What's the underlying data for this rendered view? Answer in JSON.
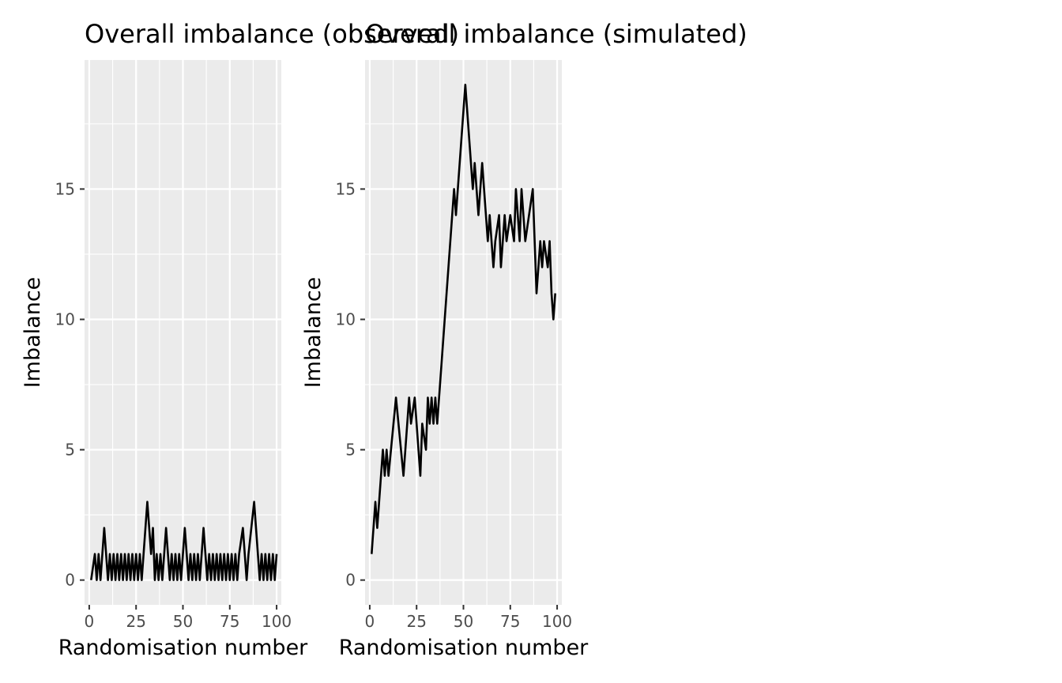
{
  "chart_data": [
    {
      "type": "line",
      "title": "Overall imbalance (observed)",
      "xlabel": "Randomisation number",
      "ylabel": "Imbalance",
      "xlim": [
        -2.5,
        102.5
      ],
      "ylim": [
        -0.95,
        19.95
      ],
      "xticks": [
        0,
        25,
        50,
        75,
        100
      ],
      "yticks": [
        0,
        5,
        10,
        15
      ],
      "grid": true,
      "legend": "none",
      "colors": {
        "panel": "#ebebeb",
        "grid": "#ffffff",
        "line": "#000000",
        "tick": "#4d4d4d"
      },
      "series": [
        {
          "x": [
            1,
            3,
            4,
            5,
            6,
            8,
            10,
            11,
            12,
            13,
            14,
            15,
            16,
            17,
            18,
            19,
            20,
            21,
            22,
            23,
            24,
            25,
            26,
            27,
            28,
            29,
            31,
            33,
            34,
            35,
            36,
            37,
            38,
            39,
            41,
            43,
            44,
            45,
            46,
            47,
            48,
            49,
            51,
            53,
            54,
            55,
            56,
            57,
            58,
            59,
            61,
            63,
            64,
            65,
            66,
            67,
            68,
            69,
            70,
            71,
            72,
            73,
            74,
            75,
            76,
            77,
            78,
            79,
            80,
            82,
            84,
            85,
            88,
            91,
            92,
            93,
            94,
            95,
            96,
            97,
            98,
            99,
            100
          ],
          "y": [
            0,
            1,
            0,
            1,
            0,
            2,
            0,
            1,
            0,
            1,
            0,
            1,
            0,
            1,
            0,
            1,
            0,
            1,
            0,
            1,
            0,
            1,
            0,
            1,
            0,
            1,
            3,
            1,
            2,
            0,
            1,
            0,
            1,
            0,
            2,
            0,
            1,
            0,
            1,
            0,
            1,
            0,
            2,
            0,
            1,
            0,
            1,
            0,
            1,
            0,
            2,
            0,
            1,
            0,
            1,
            0,
            1,
            0,
            1,
            0,
            1,
            0,
            1,
            0,
            1,
            0,
            1,
            0,
            1,
            2,
            0,
            1,
            3,
            0,
            1,
            0,
            1,
            0,
            1,
            0,
            1,
            0,
            1
          ]
        }
      ]
    },
    {
      "type": "line",
      "title": "Overall imbalance (simulated)",
      "xlabel": "Randomisation number",
      "ylabel": "Imbalance",
      "xlim": [
        -2.5,
        102.5
      ],
      "ylim": [
        -0.95,
        19.95
      ],
      "xticks": [
        0,
        25,
        50,
        75,
        100
      ],
      "yticks": [
        0,
        5,
        10,
        15
      ],
      "grid": true,
      "legend": "none",
      "colors": {
        "panel": "#ebebeb",
        "grid": "#ffffff",
        "line": "#000000",
        "tick": "#4d4d4d"
      },
      "series": [
        {
          "x": [
            1,
            3,
            4,
            7,
            8,
            9,
            10,
            14,
            18,
            20,
            21,
            22,
            24,
            25,
            27,
            28,
            30,
            31,
            32,
            33,
            34,
            35,
            36,
            37,
            45,
            46,
            51,
            55,
            56,
            57,
            58,
            60,
            63,
            64,
            66,
            67,
            69,
            70,
            71,
            72,
            73,
            75,
            77,
            78,
            80,
            81,
            83,
            87,
            89,
            90,
            91,
            92,
            93,
            95,
            96,
            97,
            98,
            99
          ],
          "y": [
            1,
            3,
            2,
            5,
            4,
            5,
            4,
            7,
            4,
            6,
            7,
            6,
            7,
            6,
            4,
            6,
            5,
            7,
            6,
            7,
            6,
            7,
            6,
            7,
            15,
            14,
            19,
            15,
            16,
            15,
            14,
            16,
            13,
            14,
            12,
            13,
            14,
            12,
            13,
            14,
            13,
            14,
            13,
            15,
            13,
            15,
            13,
            15,
            11,
            12,
            13,
            12,
            13,
            12,
            13,
            11,
            10,
            11
          ]
        }
      ]
    }
  ]
}
